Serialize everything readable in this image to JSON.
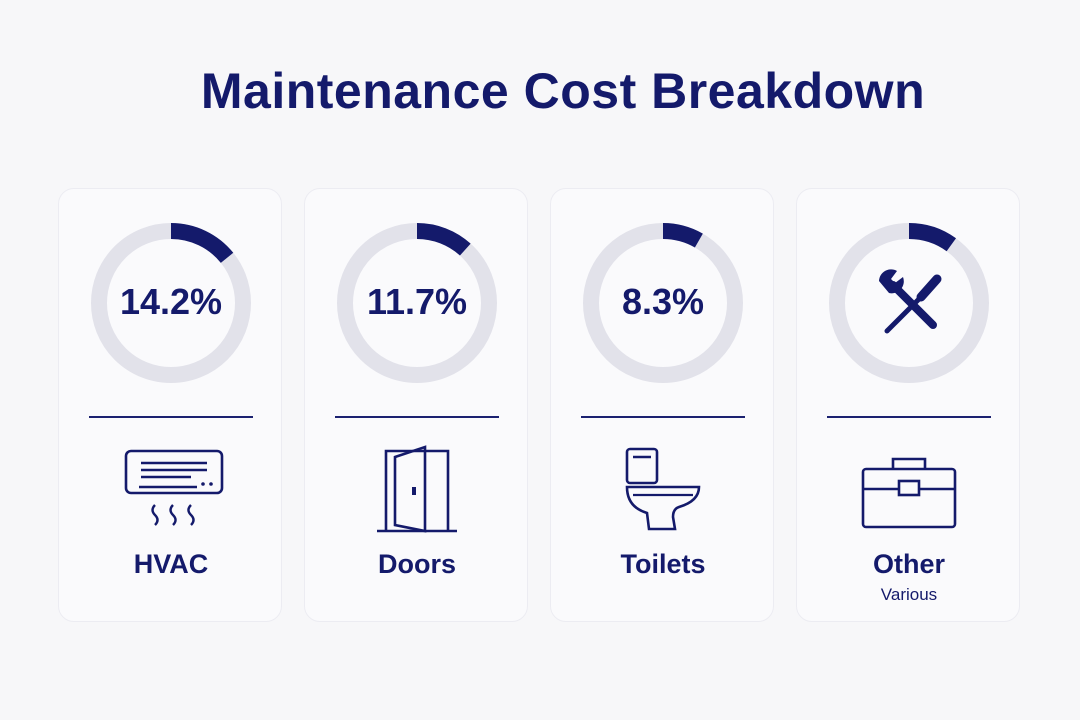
{
  "chart_data": {
    "type": "pie",
    "title": "Maintenance Cost Breakdown",
    "categories": [
      "HVAC",
      "Doors",
      "Toilets",
      "Other"
    ],
    "values": [
      14.2,
      11.7,
      8.3,
      10.0
    ],
    "value_labels": [
      "14.2%",
      "11.7%",
      "8.3%",
      ""
    ],
    "sublabels": [
      "",
      "",
      "",
      "Various"
    ],
    "icons": [
      "air-conditioner-icon",
      "door-icon",
      "toilet-icon",
      "toolbox-icon"
    ],
    "center_icons": [
      "",
      "",
      "",
      "tools-icon"
    ]
  },
  "colors": {
    "accent": "#141a6b",
    "track": "#e2e2ea",
    "background": "#f7f7f9",
    "card": "#fafafc"
  }
}
